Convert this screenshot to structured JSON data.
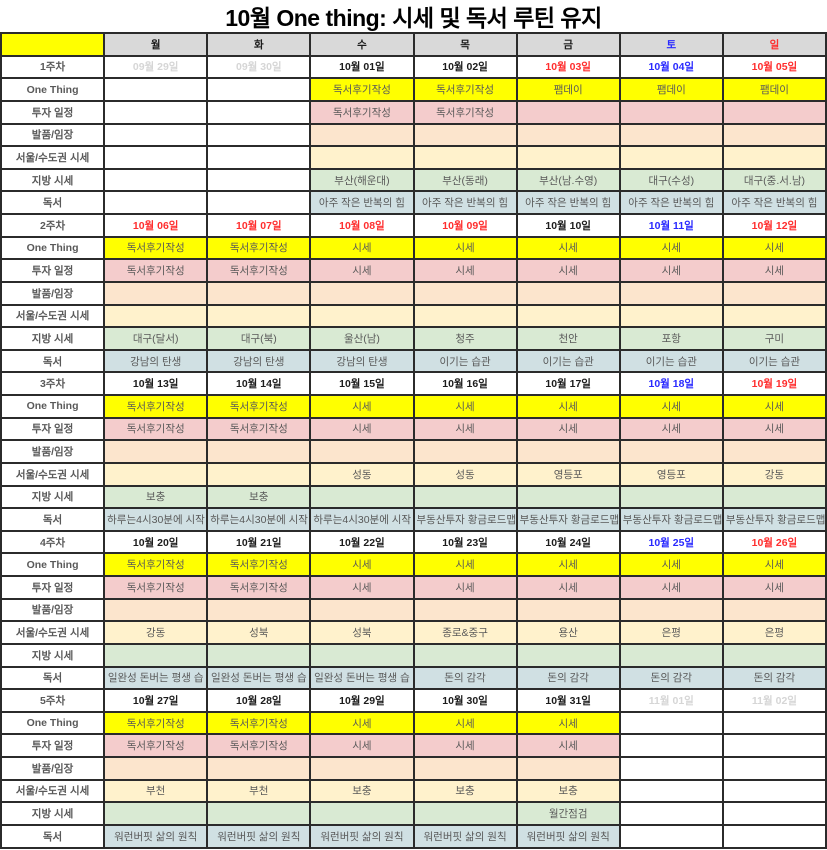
{
  "title": "10월 One thing: 시세 및 독서 루틴 유지",
  "colors": {
    "header_bg": "#d9d9d9",
    "corner_bg": "#ffff00",
    "unfilled_bg": "#ffffff",
    "date_text": {
      "black": "#1c1c1c",
      "red": "#ff2e2e",
      "blue": "#2929ff",
      "gray": "#d6d6d6"
    }
  },
  "day_headers": [
    {
      "label": "월",
      "color": "black"
    },
    {
      "label": "화",
      "color": "black"
    },
    {
      "label": "수",
      "color": "black"
    },
    {
      "label": "목",
      "color": "black"
    },
    {
      "label": "금",
      "color": "black"
    },
    {
      "label": "토",
      "color": "blue"
    },
    {
      "label": "일",
      "color": "red"
    }
  ],
  "row_order": [
    "one_thing",
    "invest",
    "field",
    "seoul",
    "local",
    "reading"
  ],
  "row_labels": {
    "one_thing": "One Thing",
    "invest": "투자 일정",
    "field": "발품/임장",
    "seoul": "서울/수도권 시세",
    "local": "지방 시세",
    "reading": "독서"
  },
  "row_fills": {
    "one_thing": "#ffff00",
    "invest": "#f4cccc",
    "field": "#fce5cd",
    "seoul": "#fff2cc",
    "local": "#d9ead3",
    "reading": "#d0e0e3"
  },
  "weeks": [
    {
      "label": "1주차",
      "unfilled_cols": [
        0,
        1
      ],
      "dates": [
        {
          "text": "09월 29일",
          "color": "gray"
        },
        {
          "text": "09월 30일",
          "color": "gray"
        },
        {
          "text": "10월 01일",
          "color": "black"
        },
        {
          "text": "10월 02일",
          "color": "black"
        },
        {
          "text": "10월 03일",
          "color": "red"
        },
        {
          "text": "10월 04일",
          "color": "blue"
        },
        {
          "text": "10월 05일",
          "color": "red"
        }
      ],
      "rows": {
        "one_thing": [
          "",
          "",
          "독서후기작성",
          "독서후기작성",
          "팸데이",
          "팸데이",
          "팸데이"
        ],
        "invest": [
          "",
          "",
          "독서후기작성",
          "독서후기작성",
          "",
          "",
          ""
        ],
        "field": [
          "",
          "",
          "",
          "",
          "",
          "",
          ""
        ],
        "seoul": [
          "",
          "",
          "",
          "",
          "",
          "",
          ""
        ],
        "local": [
          "",
          "",
          "부산(해운대)",
          "부산(동래)",
          "부산(남.수영)",
          "대구(수성)",
          "대구(중.서.남)"
        ],
        "reading": [
          "",
          "",
          "아주 작은 반복의 힘",
          "아주 작은 반복의 힘",
          "아주 작은 반복의 힘",
          "아주 작은 반복의 힘",
          "아주 작은 반복의 힘"
        ]
      }
    },
    {
      "label": "2주차",
      "unfilled_cols": [],
      "dates": [
        {
          "text": "10월 06일",
          "color": "red"
        },
        {
          "text": "10월 07일",
          "color": "red"
        },
        {
          "text": "10월 08일",
          "color": "red"
        },
        {
          "text": "10월 09일",
          "color": "red"
        },
        {
          "text": "10월 10일",
          "color": "black"
        },
        {
          "text": "10월 11일",
          "color": "blue"
        },
        {
          "text": "10월 12일",
          "color": "red"
        }
      ],
      "rows": {
        "one_thing": [
          "독서후기작성",
          "독서후기작성",
          "시세",
          "시세",
          "시세",
          "시세",
          "시세"
        ],
        "invest": [
          "독서후기작성",
          "독서후기작성",
          "시세",
          "시세",
          "시세",
          "시세",
          "시세"
        ],
        "field": [
          "",
          "",
          "",
          "",
          "",
          "",
          ""
        ],
        "seoul": [
          "",
          "",
          "",
          "",
          "",
          "",
          ""
        ],
        "local": [
          "대구(달서)",
          "대구(북)",
          "울산(남)",
          "청주",
          "천안",
          "포항",
          "구미"
        ],
        "reading": [
          "강남의 탄생",
          "강남의 탄생",
          "강남의 탄생",
          "이기는 습관",
          "이기는 습관",
          "이기는 습관",
          "이기는 습관"
        ]
      }
    },
    {
      "label": "3주차",
      "unfilled_cols": [],
      "dates": [
        {
          "text": "10월 13일",
          "color": "black"
        },
        {
          "text": "10월 14일",
          "color": "black"
        },
        {
          "text": "10월 15일",
          "color": "black"
        },
        {
          "text": "10월 16일",
          "color": "black"
        },
        {
          "text": "10월 17일",
          "color": "black"
        },
        {
          "text": "10월 18일",
          "color": "blue"
        },
        {
          "text": "10월 19일",
          "color": "red"
        }
      ],
      "rows": {
        "one_thing": [
          "독서후기작성",
          "독서후기작성",
          "시세",
          "시세",
          "시세",
          "시세",
          "시세"
        ],
        "invest": [
          "독서후기작성",
          "독서후기작성",
          "시세",
          "시세",
          "시세",
          "시세",
          "시세"
        ],
        "field": [
          "",
          "",
          "",
          "",
          "",
          "",
          ""
        ],
        "seoul": [
          "",
          "",
          "성동",
          "성동",
          "영등포",
          "영등포",
          "강동"
        ],
        "local": [
          "보충",
          "보충",
          "",
          "",
          "",
          "",
          ""
        ],
        "reading": [
          "하루는4시30분에 시작",
          "하루는4시30분에 시작",
          "하루는4시30분에 시작",
          "부동산투자 황금로드맵",
          "부동산투자 황금로드맵",
          "부동산투자 황금로드맵",
          "부동산투자 황금로드맵"
        ]
      }
    },
    {
      "label": "4주차",
      "unfilled_cols": [],
      "dates": [
        {
          "text": "10월 20일",
          "color": "black"
        },
        {
          "text": "10월 21일",
          "color": "black"
        },
        {
          "text": "10월 22일",
          "color": "black"
        },
        {
          "text": "10월 23일",
          "color": "black"
        },
        {
          "text": "10월 24일",
          "color": "black"
        },
        {
          "text": "10월 25일",
          "color": "blue"
        },
        {
          "text": "10월 26일",
          "color": "red"
        }
      ],
      "rows": {
        "one_thing": [
          "독서후기작성",
          "독서후기작성",
          "시세",
          "시세",
          "시세",
          "시세",
          "시세"
        ],
        "invest": [
          "독서후기작성",
          "독서후기작성",
          "시세",
          "시세",
          "시세",
          "시세",
          "시세"
        ],
        "field": [
          "",
          "",
          "",
          "",
          "",
          "",
          ""
        ],
        "seoul": [
          "강동",
          "성북",
          "성북",
          "종로&중구",
          "용산",
          "은평",
          "은평"
        ],
        "local": [
          "",
          "",
          "",
          "",
          "",
          "",
          ""
        ],
        "reading": [
          "일완성 돈버는 평생 습",
          "일완성 돈버는 평생 습",
          "일완성 돈버는 평생 습",
          "돈의 감각",
          "돈의 감각",
          "돈의 감각",
          "돈의 감각"
        ]
      }
    },
    {
      "label": "5주차",
      "unfilled_cols": [
        5,
        6
      ],
      "dates": [
        {
          "text": "10월 27일",
          "color": "black"
        },
        {
          "text": "10월 28일",
          "color": "black"
        },
        {
          "text": "10월 29일",
          "color": "black"
        },
        {
          "text": "10월 30일",
          "color": "black"
        },
        {
          "text": "10월 31일",
          "color": "black"
        },
        {
          "text": "11월 01일",
          "color": "gray"
        },
        {
          "text": "11월 02일",
          "color": "gray"
        }
      ],
      "rows": {
        "one_thing": [
          "독서후기작성",
          "독서후기작성",
          "시세",
          "시세",
          "시세",
          "",
          ""
        ],
        "invest": [
          "독서후기작성",
          "독서후기작성",
          "시세",
          "시세",
          "시세",
          "",
          ""
        ],
        "field": [
          "",
          "",
          "",
          "",
          "",
          "",
          ""
        ],
        "seoul": [
          "부천",
          "부천",
          "보충",
          "보충",
          "보충",
          "",
          ""
        ],
        "local": [
          "",
          "",
          "",
          "",
          "월간점검",
          "",
          ""
        ],
        "reading": [
          "워런버핏 삶의 원칙",
          "워런버핏 삶의 원칙",
          "워런버핏 삶의 원칙",
          "워런버핏 삶의 원칙",
          "워런버핏 삶의 원칙",
          "",
          ""
        ]
      }
    }
  ]
}
